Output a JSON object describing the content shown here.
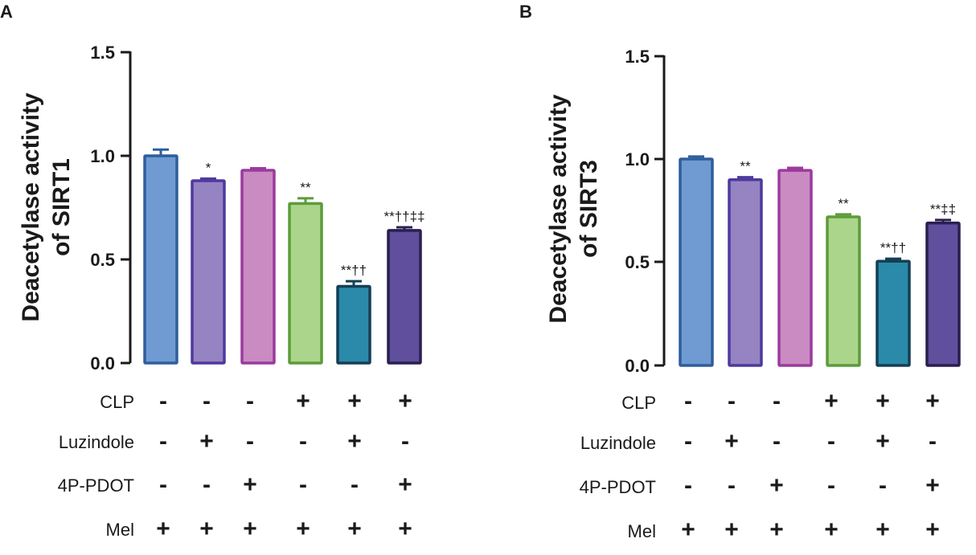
{
  "colors": {
    "axis": "#1a1a1a",
    "fills": [
      "#6f9bd2",
      "#9683c2",
      "#c98bc2",
      "#acd58c",
      "#2b8aa9",
      "#5f4f9c"
    ],
    "strokes": [
      "#2f5e9c",
      "#4d3a9d",
      "#9b3a9e",
      "#5c9c3a",
      "#153f55",
      "#2a1f4f"
    ]
  },
  "conditions": [
    {
      "label": "CLP",
      "signs": [
        "-",
        "-",
        "-",
        "+",
        "+",
        "+"
      ]
    },
    {
      "label": "Luzindole",
      "signs": [
        "-",
        "+",
        "-",
        "-",
        "+",
        "-"
      ]
    },
    {
      "label": "4P-PDOT",
      "signs": [
        "-",
        "-",
        "+",
        "-",
        "-",
        "+"
      ]
    },
    {
      "label": "Mel",
      "signs": [
        "+",
        "+",
        "+",
        "+",
        "+",
        "+"
      ]
    }
  ],
  "chart_data": [
    {
      "panel": "A",
      "type": "bar",
      "ylabel_line1": "Deacetylase activity",
      "ylabel_line2": "of SIRT1",
      "ylim": [
        0,
        1.5
      ],
      "yticks": [
        "0.0",
        "0.5",
        "1.0",
        "1.5"
      ],
      "values": [
        1.0,
        0.88,
        0.93,
        0.77,
        0.37,
        0.64
      ],
      "errors": [
        0.03,
        0.01,
        0.01,
        0.025,
        0.025,
        0.015
      ],
      "annotations": [
        "",
        "*",
        "",
        "**",
        "**††",
        "**††‡‡"
      ]
    },
    {
      "panel": "B",
      "type": "bar",
      "ylabel_line1": "Deacetylase activity",
      "ylabel_line2": "of SIRT3",
      "ylim": [
        0,
        1.5
      ],
      "yticks": [
        "0.0",
        "0.5",
        "1.0",
        "1.5"
      ],
      "values": [
        1.0,
        0.9,
        0.945,
        0.72,
        0.505,
        0.69
      ],
      "errors": [
        0.012,
        0.012,
        0.012,
        0.012,
        0.012,
        0.015
      ],
      "annotations": [
        "",
        "**",
        "",
        "**",
        "**††",
        "**‡‡"
      ]
    }
  ]
}
